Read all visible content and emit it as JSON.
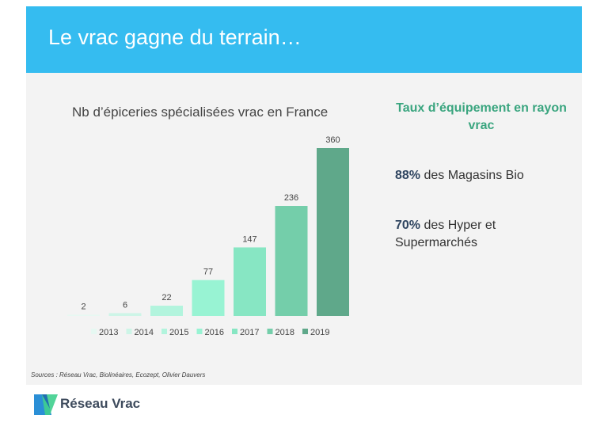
{
  "slide": {
    "title": "Le vrac gagne du terrain…"
  },
  "chart_data": {
    "type": "bar",
    "title": "Nb d’épiceries spécialisées vrac en France",
    "categories": [
      "2013",
      "2014",
      "2015",
      "2016",
      "2017",
      "2018",
      "2019"
    ],
    "values": [
      2,
      6,
      22,
      77,
      147,
      236,
      360
    ],
    "series_colors": [
      "#e6f8f2",
      "#cdf5e7",
      "#b2f4dd",
      "#98f3d3",
      "#87e6c3",
      "#74ceaa",
      "#5fa88a"
    ],
    "ylim": [
      0,
      360
    ],
    "grid": false,
    "legend_position": "bottom",
    "data_labels": true
  },
  "sidebar": {
    "heading": "Taux d’équipement en rayon vrac",
    "stat1_value": "88%",
    "stat1_text": " des Magasins Bio",
    "stat2_value": "70%",
    "stat2_text": " des Hyper et Supermarchés"
  },
  "footer": {
    "sources": "Sources : Réseau Vrac, Biolinéaires, Ecozept, Olivier Dauvers",
    "logo_text": "Réseau Vrac"
  },
  "colors": {
    "banner": "#35bcf0",
    "accent": "#3aa57f"
  }
}
